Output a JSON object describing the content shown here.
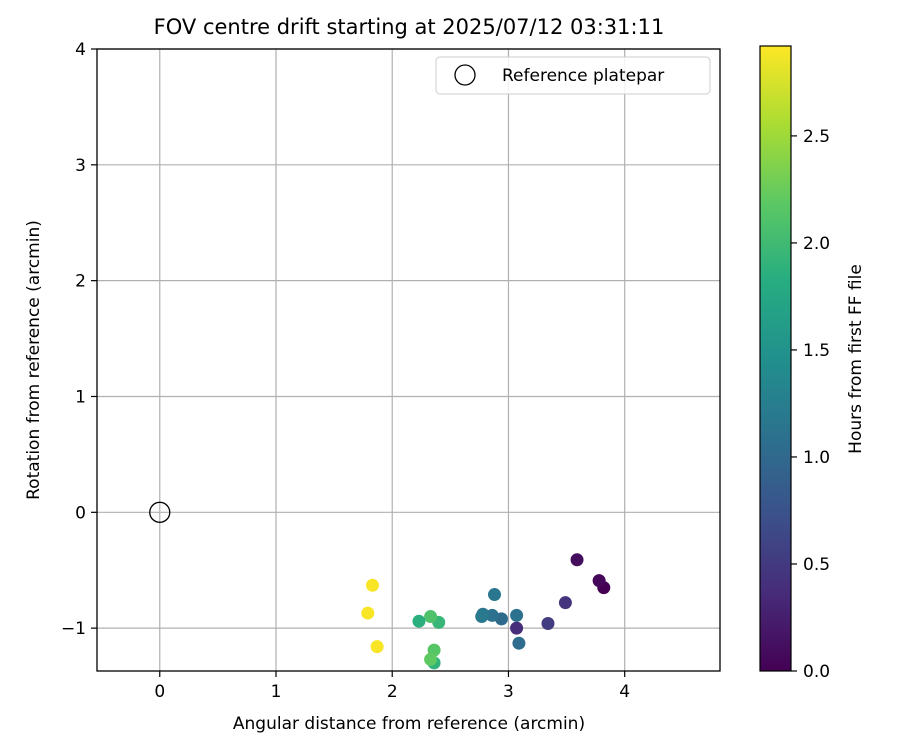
{
  "chart_data": {
    "type": "scatter",
    "title": "FOV centre drift starting at 2025/07/12 03:31:11",
    "xlabel": "Angular distance from reference (arcmin)",
    "ylabel": "Rotation from reference (arcmin)",
    "xlim": [
      -0.54,
      4.82
    ],
    "ylim": [
      -1.37,
      4.0
    ],
    "xticks": [
      0,
      1,
      2,
      3,
      4
    ],
    "xtick_labels": [
      "0",
      "1",
      "2",
      "3",
      "4"
    ],
    "yticks": [
      -1,
      0,
      1,
      2,
      3,
      4
    ],
    "ytick_labels": [
      "−1",
      "0",
      "1",
      "2",
      "3",
      "4"
    ],
    "grid": true,
    "legend": {
      "position": "top-right",
      "entries": [
        "Reference platepar"
      ]
    },
    "reference": {
      "x": 0,
      "y": 0,
      "label": "Reference platepar"
    },
    "colorbar": {
      "label": "Hours from first FF file",
      "colormap": "viridis",
      "range": [
        0,
        2.92
      ],
      "ticks": [
        0.0,
        0.5,
        1.0,
        1.5,
        2.0,
        2.5
      ],
      "tick_labels": [
        "0.0",
        "0.5",
        "1.0",
        "1.5",
        "2.0",
        "2.5"
      ]
    },
    "points": [
      {
        "x": 3.82,
        "y": -0.65,
        "c": 0.0
      },
      {
        "x": 3.78,
        "y": -0.59,
        "c": 0.05
      },
      {
        "x": 3.59,
        "y": -0.41,
        "c": 0.1
      },
      {
        "x": 3.49,
        "y": -0.78,
        "c": 0.45
      },
      {
        "x": 3.34,
        "y": -0.96,
        "c": 0.52
      },
      {
        "x": 3.07,
        "y": -1.0,
        "c": 0.38
      },
      {
        "x": 3.09,
        "y": -1.13,
        "c": 1.05
      },
      {
        "x": 3.07,
        "y": -0.89,
        "c": 1.1
      },
      {
        "x": 2.94,
        "y": -0.92,
        "c": 1.02
      },
      {
        "x": 2.88,
        "y": -0.71,
        "c": 1.15
      },
      {
        "x": 2.86,
        "y": -0.89,
        "c": 1.1
      },
      {
        "x": 2.78,
        "y": -0.88,
        "c": 1.15
      },
      {
        "x": 2.77,
        "y": -0.9,
        "c": 1.2
      },
      {
        "x": 2.4,
        "y": -0.95,
        "c": 1.95
      },
      {
        "x": 2.33,
        "y": -0.9,
        "c": 2.1
      },
      {
        "x": 2.23,
        "y": -0.94,
        "c": 1.85
      },
      {
        "x": 2.36,
        "y": -1.19,
        "c": 2.15
      },
      {
        "x": 2.36,
        "y": -1.3,
        "c": 1.9
      },
      {
        "x": 2.33,
        "y": -1.27,
        "c": 2.2
      },
      {
        "x": 1.83,
        "y": -0.63,
        "c": 2.9
      },
      {
        "x": 1.79,
        "y": -0.87,
        "c": 2.9
      },
      {
        "x": 1.87,
        "y": -1.16,
        "c": 2.9
      }
    ]
  }
}
